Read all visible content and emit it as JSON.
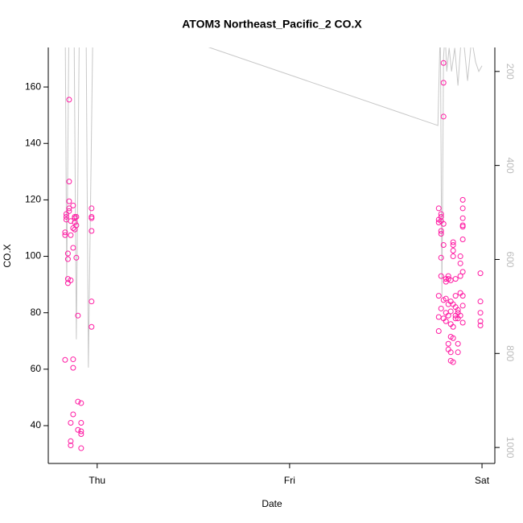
{
  "chart_data": {
    "type": "scatter",
    "title": "ATOM3 Northeast_Pacific_2 CO.X",
    "x_label": "Date",
    "y_label": "CO.X",
    "xlim": [
      -6.1,
      49.6
    ],
    "xticks": [
      {
        "value": 0,
        "label": "Thu"
      },
      {
        "value": 24,
        "label": "Fri"
      },
      {
        "value": 48,
        "label": "Sat"
      }
    ],
    "ylim": [
      26.6,
      174
    ],
    "yticks": [
      40,
      60,
      80,
      100,
      120,
      140,
      160
    ],
    "y2lim": [
      1034,
      149
    ],
    "y2ticks": [
      200,
      400,
      600,
      800,
      1000
    ],
    "series": [
      {
        "type": "scatter",
        "color": "#ff1aa3",
        "x": [
          -4.0,
          -4.0,
          -4.0,
          -3.85,
          -3.85,
          -3.85,
          -3.65,
          -3.65,
          -3.65,
          -3.65,
          -3.5,
          -3.5,
          -3.5,
          -3.5,
          -3.5,
          -3.3,
          -3.3,
          -3.3,
          -3.3,
          -3.3,
          -3.3,
          -3.0,
          -3.0,
          -3.0,
          -3.0,
          -3.0,
          -3.0,
          -2.8,
          -2.8,
          -2.8,
          -2.8,
          -2.6,
          -2.6,
          -2.6,
          -2.4,
          -2.4,
          -2.4,
          -2.0,
          -2.0,
          -2.0,
          -2.0,
          -2.0,
          -0.7,
          -0.7,
          -0.7,
          -0.7,
          -0.7,
          -0.7,
          42.6,
          42.6,
          42.6,
          42.6,
          42.6,
          42.6,
          42.9,
          42.9,
          42.9,
          42.9,
          42.9,
          42.9,
          42.9,
          42.9,
          43.2,
          43.2,
          43.2,
          43.2,
          43.2,
          43.2,
          43.2,
          43.5,
          43.5,
          43.5,
          43.5,
          43.5,
          43.8,
          43.8,
          43.8,
          43.8,
          43.8,
          43.8,
          44.1,
          44.1,
          44.1,
          44.1,
          44.1,
          44.1,
          44.1,
          44.4,
          44.4,
          44.4,
          44.4,
          44.4,
          44.4,
          44.4,
          44.4,
          44.7,
          44.7,
          44.7,
          44.7,
          44.7,
          45.0,
          45.0,
          45.0,
          45.0,
          45.0,
          45.3,
          45.3,
          45.3,
          45.3,
          45.3,
          45.6,
          45.6,
          45.6,
          45.6,
          45.6,
          45.6,
          45.6,
          45.6,
          45.6,
          45.6,
          47.8,
          47.8,
          47.8,
          47.8,
          47.8
        ],
        "values": [
          107.5,
          108.5,
          63.3,
          113,
          114,
          115,
          101,
          99,
          92,
          90.5,
          155.5,
          126.5,
          119.5,
          116,
          117,
          112.5,
          107.5,
          91.5,
          41,
          33,
          34.5,
          118,
          110,
          103,
          63.5,
          60.5,
          44,
          114,
          113.5,
          112,
          109.5,
          114,
          111,
          99.5,
          79,
          48.5,
          38.5,
          37,
          41,
          38,
          32,
          48,
          117,
          114,
          113.5,
          109,
          84,
          75,
          117,
          113,
          112,
          86,
          78.5,
          73.5,
          115,
          114,
          112.5,
          109,
          108,
          99.5,
          93,
          81.5,
          168.5,
          161.5,
          149.5,
          111.5,
          104,
          84.5,
          78,
          92,
          91,
          85,
          80,
          77,
          93,
          92,
          83,
          79,
          69,
          67,
          91.5,
          84,
          80.5,
          76,
          71.5,
          66,
          63,
          105,
          104,
          102,
          100,
          83,
          75,
          71,
          62.5,
          92,
          86,
          82,
          79,
          78,
          81,
          80,
          78,
          69,
          66,
          100,
          97.5,
          93,
          87,
          79,
          120,
          117,
          113.5,
          111,
          110.5,
          106,
          94.5,
          86,
          82.5,
          76.5,
          94,
          84,
          80,
          77,
          75.5
        ]
      },
      {
        "type": "line",
        "axis": "y2",
        "color": "#c8c8c8",
        "x": [
          -4.0,
          -3.8,
          -3.5,
          -2.9,
          -2.6,
          -2.2,
          -1.4,
          -1.1,
          -0.5,
          14.0,
          42.5,
          42.8,
          43.0,
          43.2,
          43.4,
          43.6,
          43.9,
          44.2,
          44.6,
          45.0,
          45.4,
          45.8,
          46.2,
          46.7,
          47.2,
          47.6,
          48.0
        ],
        "values": [
          60,
          650,
          60,
          60,
          770,
          60,
          60,
          830,
          60,
          149,
          315,
          100,
          680,
          170,
          120,
          200,
          150,
          200,
          150,
          230,
          130,
          150,
          220,
          130,
          180,
          200,
          188
        ]
      }
    ]
  }
}
